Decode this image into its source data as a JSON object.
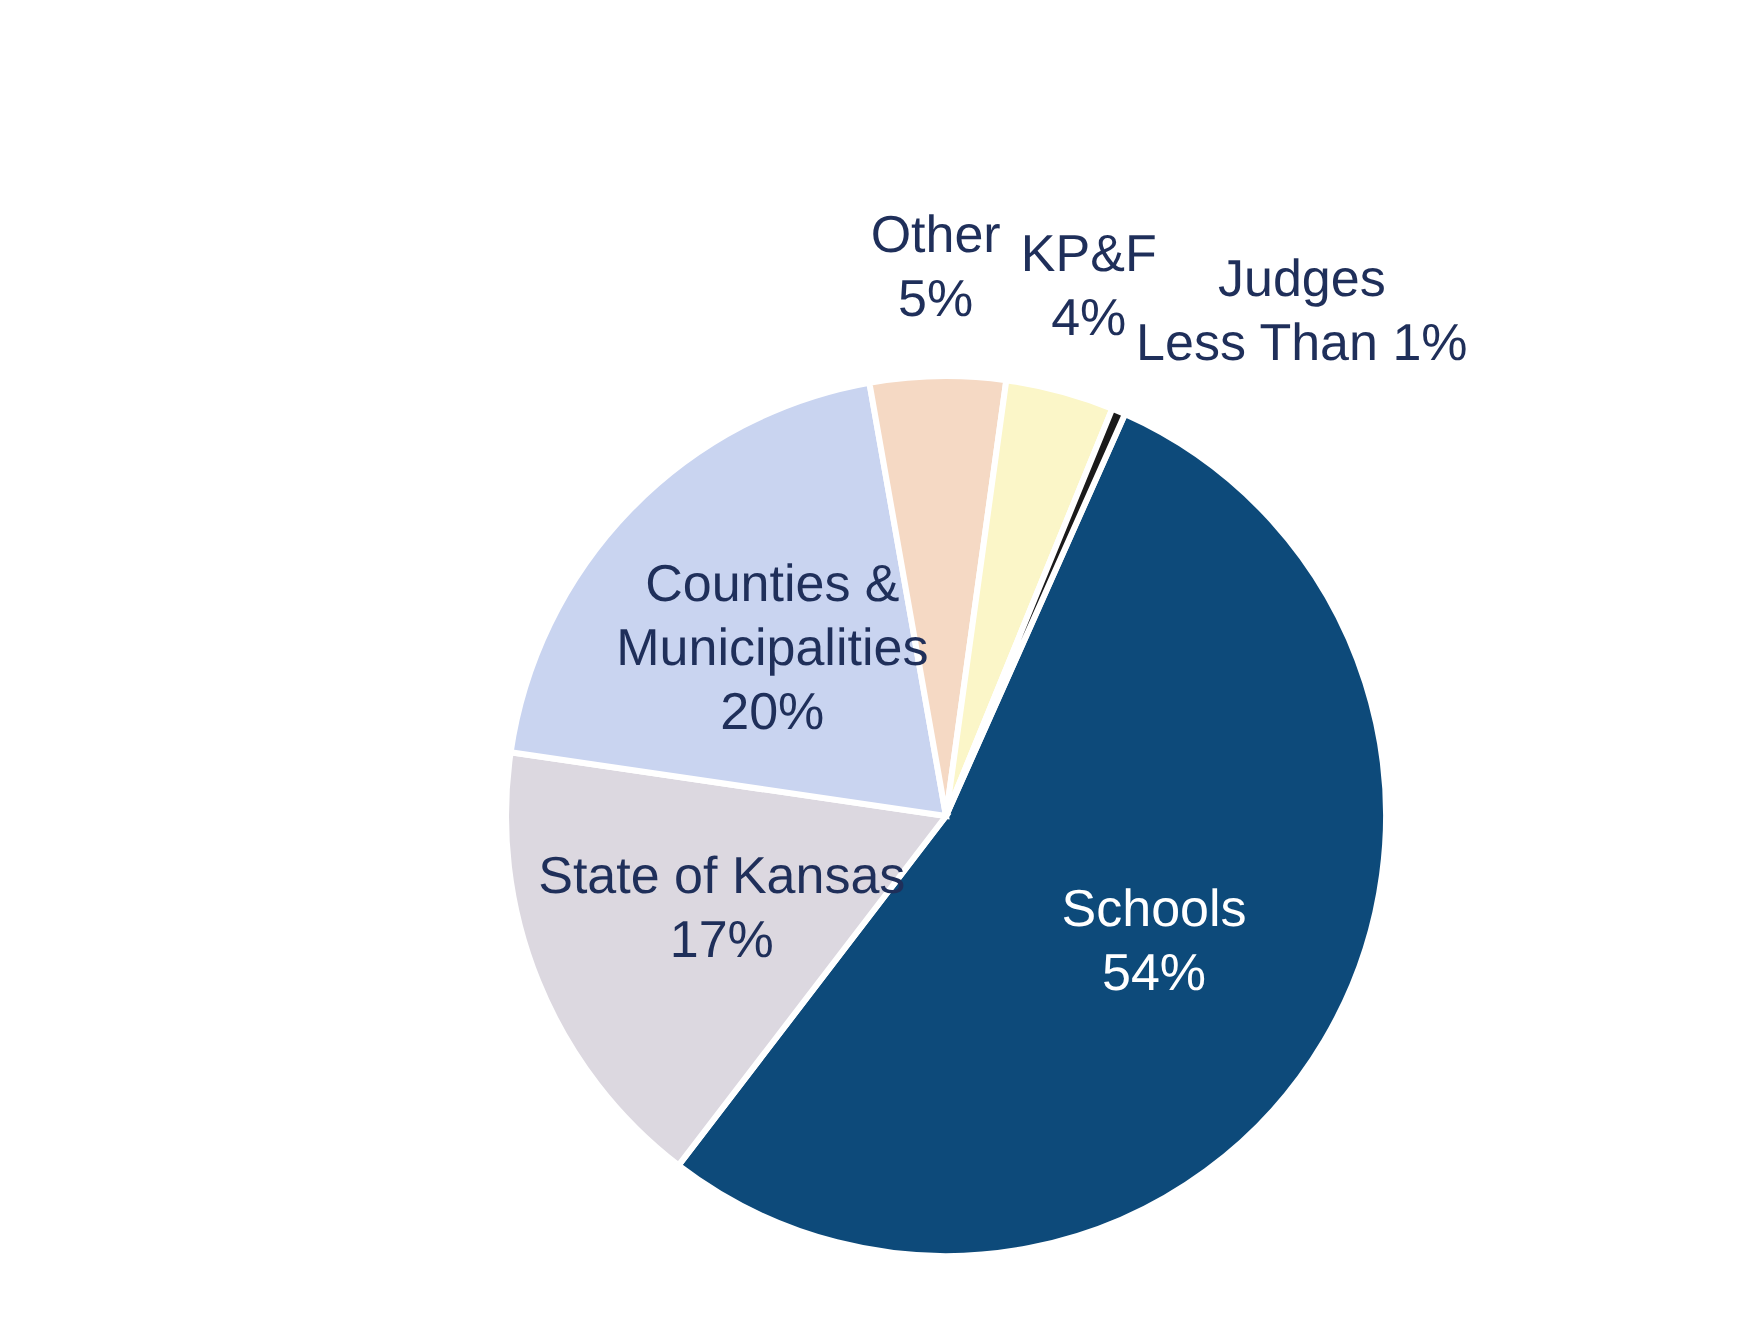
{
  "chart_data": {
    "type": "pie",
    "categories": [
      "Schools",
      "State of Kansas",
      "Counties & Municipalities",
      "Other",
      "KP&F",
      "Judges"
    ],
    "values": [
      54,
      17,
      20,
      5,
      4,
      0.5
    ],
    "value_labels": [
      "54%",
      "17%",
      "20%",
      "5%",
      "4%",
      "Less Than 1%"
    ],
    "colors": [
      "#0d4a7a",
      "#dcd8e0",
      "#c9d4f0",
      "#f5d9c4",
      "#fbf6c8",
      "#1a1a1a"
    ],
    "legend": false
  }
}
